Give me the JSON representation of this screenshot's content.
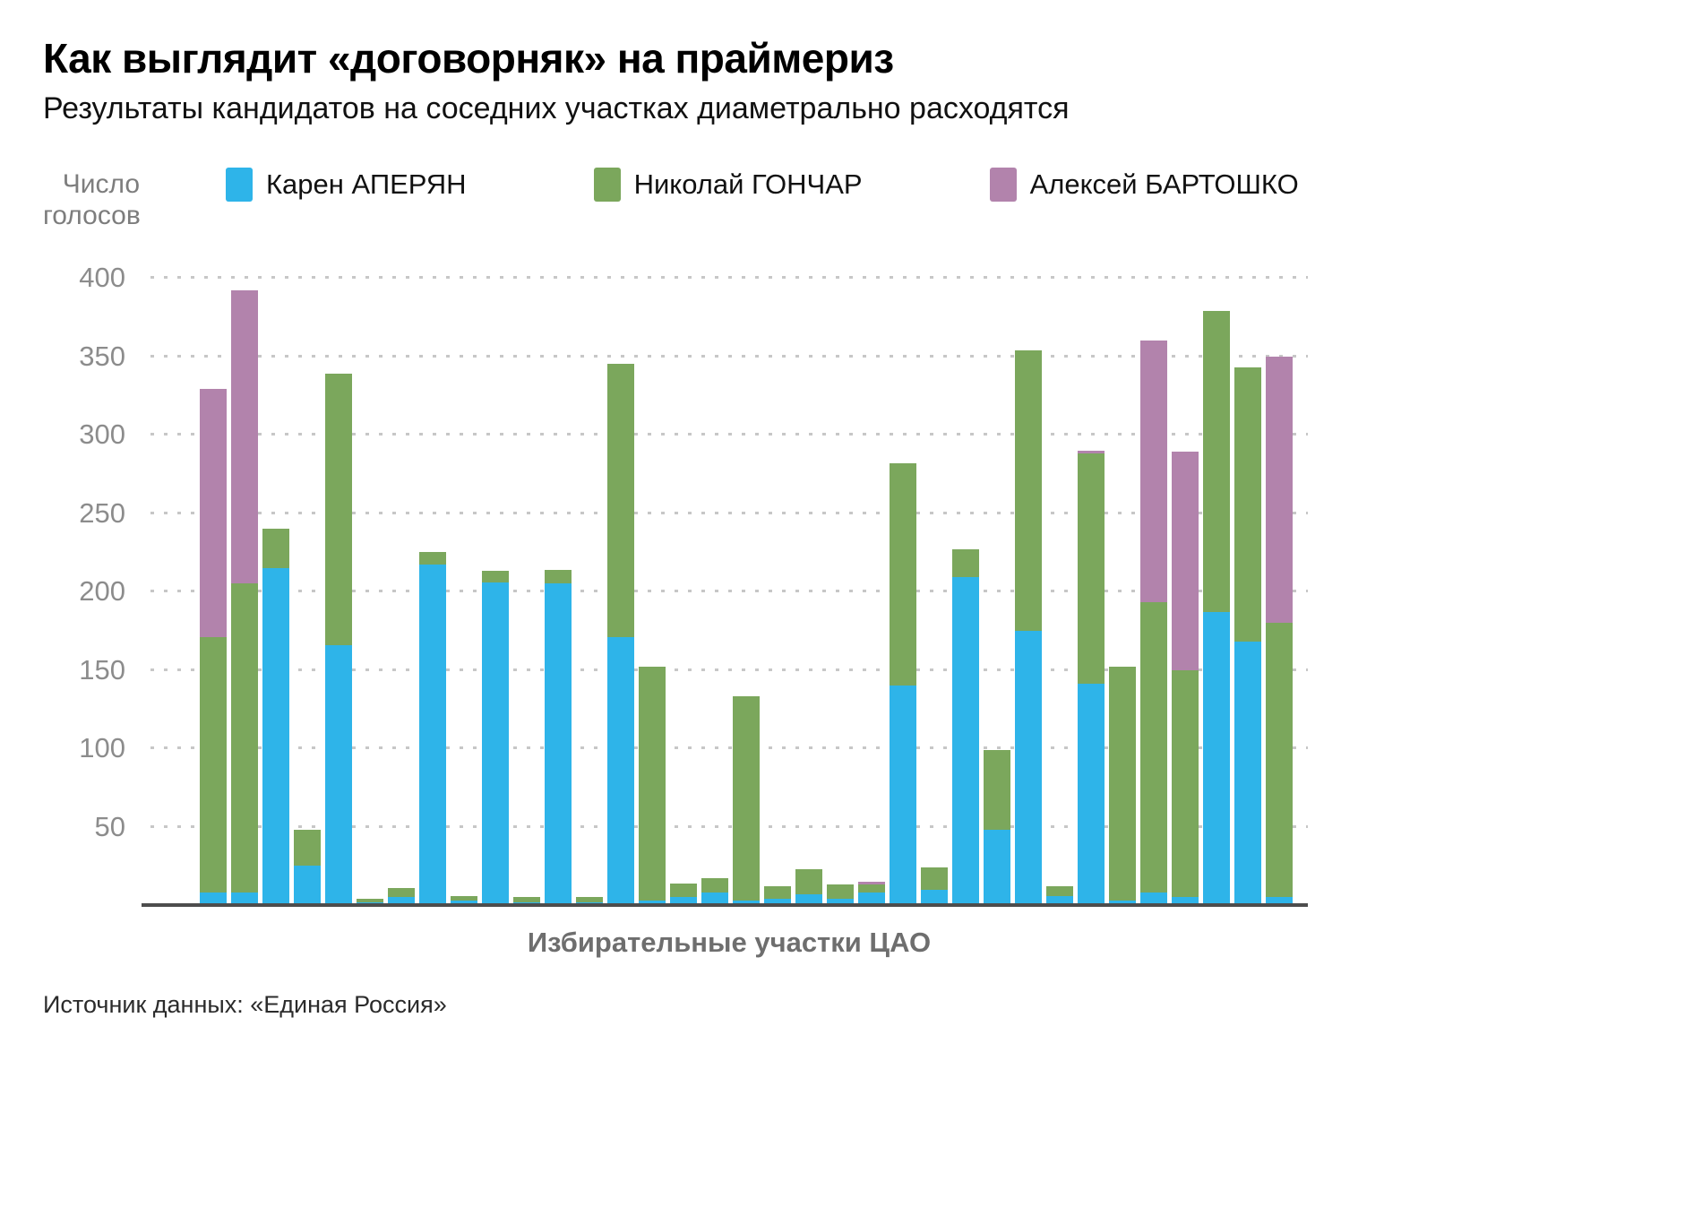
{
  "chart_data": {
    "type": "bar",
    "stacked": true,
    "title": "Как выглядит «договорняк» на праймериз",
    "subtitle": "Результаты кандидатов на соседних участках диаметрально расходятся",
    "ylabel": "Число голосов",
    "xlabel": "Избирательные участки ЦАО",
    "source": "Источник данных: «Единая Россия»",
    "ylim": [
      0,
      400
    ],
    "yticks": [
      400,
      350,
      300,
      250,
      200,
      150,
      100,
      50
    ],
    "grid": "dotted-horizontal",
    "legend_position": "top",
    "colors": {
      "aperyan": "#2eb4e9",
      "gonchar": "#7ba75c",
      "bartoshko": "#b283ac"
    },
    "series": [
      {
        "name": "Карен АПЕРЯН",
        "color": "#2eb4e9",
        "values": [
          8,
          8,
          215,
          25,
          166,
          2,
          5,
          217,
          3,
          206,
          2,
          205,
          2,
          171,
          3,
          5,
          8,
          3,
          4,
          7,
          4,
          8,
          140,
          10,
          209,
          48,
          175,
          6,
          141,
          3,
          8,
          5,
          187,
          168,
          5
        ]
      },
      {
        "name": "Николай ГОНЧАР",
        "color": "#7ba75c",
        "values": [
          163,
          197,
          25,
          23,
          173,
          2,
          6,
          8,
          3,
          7,
          3,
          9,
          3,
          174,
          149,
          9,
          9,
          130,
          8,
          16,
          9,
          5,
          142,
          14,
          18,
          51,
          179,
          6,
          147,
          149,
          185,
          145,
          192,
          175,
          175
        ]
      },
      {
        "name": "Алексей БАРТОШКО",
        "color": "#b283ac",
        "values": [
          158,
          187,
          0,
          0,
          0,
          0,
          0,
          0,
          0,
          0,
          0,
          0,
          0,
          0,
          0,
          0,
          0,
          0,
          0,
          0,
          0,
          2,
          0,
          0,
          0,
          0,
          0,
          0,
          2,
          0,
          167,
          139,
          0,
          0,
          170
        ]
      }
    ]
  }
}
